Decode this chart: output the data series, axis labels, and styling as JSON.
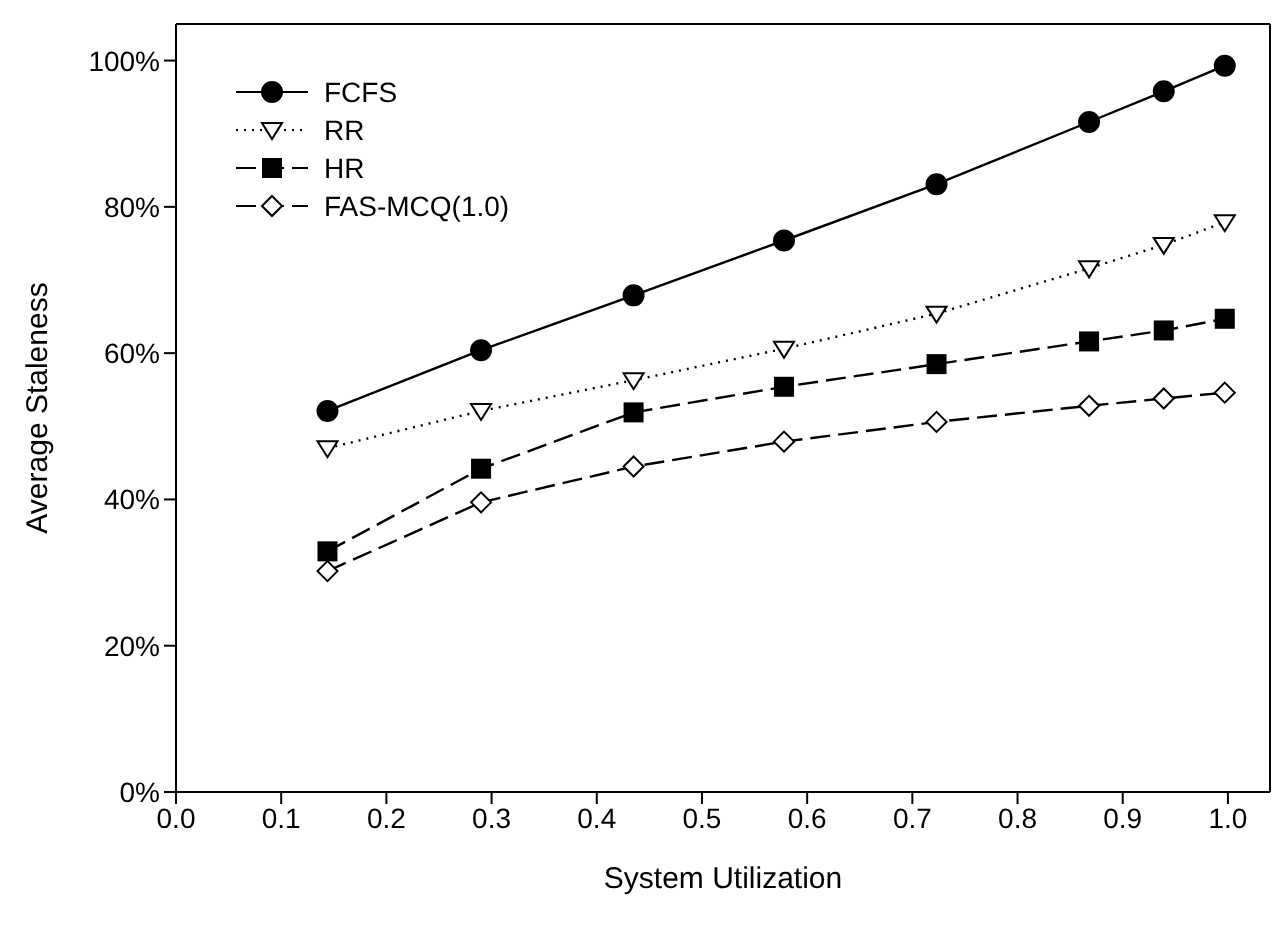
{
  "chart_data": {
    "type": "line",
    "xlabel": "System Utilization",
    "ylabel": "Average Staleness",
    "x": [
      0.144,
      0.29,
      0.435,
      0.578,
      0.723,
      0.868,
      0.939,
      0.997
    ],
    "series": [
      {
        "name": "FCFS",
        "color": "#000000",
        "marker": "circle",
        "line_style": "solid",
        "values": [
          52.1,
          60.4,
          67.9,
          75.4,
          83.1,
          91.6,
          95.8,
          99.3
        ]
      },
      {
        "name": "RR",
        "color": "#000000",
        "marker": "triangle",
        "line_style": "dotted",
        "values": [
          47.0,
          52.1,
          56.3,
          60.6,
          65.4,
          71.6,
          74.8,
          77.9
        ]
      },
      {
        "name": "HR",
        "color": "#000000",
        "marker": "square",
        "line_style": "dashed",
        "values": [
          32.9,
          44.2,
          51.9,
          55.4,
          58.5,
          61.6,
          63.1,
          64.7
        ]
      },
      {
        "name": "FAS-MCQ(1.0)",
        "color": "#000000",
        "marker": "diamond",
        "line_style": "dashed",
        "values": [
          30.2,
          39.6,
          44.5,
          47.9,
          50.6,
          52.8,
          53.8,
          54.6
        ]
      }
    ],
    "xlim": [
      0,
      1.04
    ],
    "xticks": [
      {
        "value": 0,
        "label": "0.0"
      },
      {
        "value": 0.1,
        "label": "0.1"
      },
      {
        "value": 0.2,
        "label": "0.2"
      },
      {
        "value": 0.3,
        "label": "0.3"
      },
      {
        "value": 0.4,
        "label": "0.4"
      },
      {
        "value": 0.5,
        "label": "0.5"
      },
      {
        "value": 0.6,
        "label": "0.6"
      },
      {
        "value": 0.7,
        "label": "0.7"
      },
      {
        "value": 0.8,
        "label": "0.8"
      },
      {
        "value": 0.9,
        "label": "0.9"
      },
      {
        "value": 1.0,
        "label": "1.0"
      }
    ],
    "ylim": [
      0,
      105
    ],
    "yticks": [
      {
        "value": 0,
        "label": "0%"
      },
      {
        "value": 20,
        "label": "20%"
      },
      {
        "value": 40,
        "label": "40%"
      },
      {
        "value": 60,
        "label": "60%"
      },
      {
        "value": 80,
        "label": "80%"
      },
      {
        "value": 100,
        "label": "100%"
      }
    ],
    "legend": "top left",
    "grid": false
  }
}
